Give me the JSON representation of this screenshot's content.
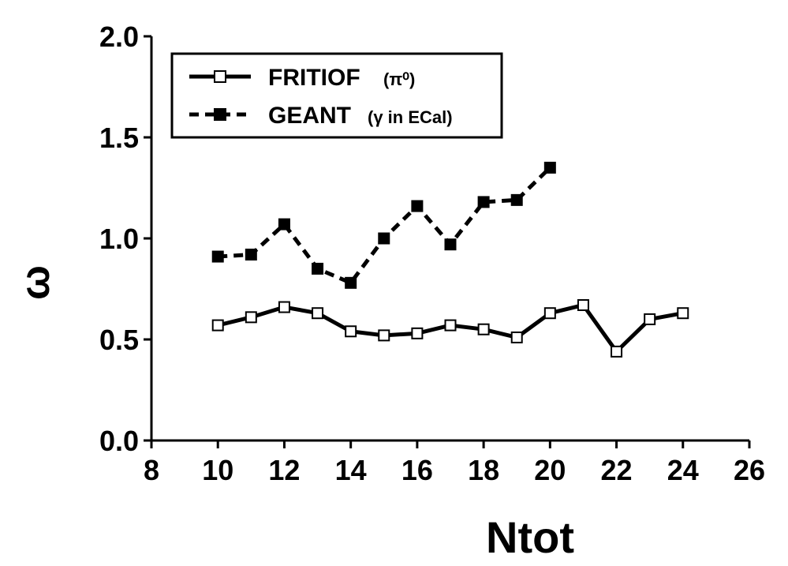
{
  "chart_data": {
    "type": "line",
    "xlabel": "Ntot",
    "ylabel": "ω",
    "xlim": [
      8,
      26
    ],
    "ylim": [
      0.0,
      2.0
    ],
    "x_ticks": [
      "8",
      "10",
      "12",
      "14",
      "16",
      "18",
      "20",
      "22",
      "24",
      "26"
    ],
    "y_ticks": [
      "0.0",
      "0.5",
      "1.0",
      "1.5",
      "2.0"
    ],
    "grid": false,
    "legend_position": "top-left",
    "series": [
      {
        "name": "FRITIOF",
        "name_suffix": "(π⁰)",
        "marker": "open-square",
        "line_style": "solid",
        "x": [
          10,
          11,
          12,
          13,
          14,
          15,
          16,
          17,
          18,
          19,
          20,
          21,
          22,
          23,
          24
        ],
        "y": [
          0.57,
          0.61,
          0.66,
          0.63,
          0.54,
          0.52,
          0.53,
          0.57,
          0.55,
          0.51,
          0.63,
          0.67,
          0.44,
          0.6,
          0.63
        ]
      },
      {
        "name": "GEANT",
        "name_suffix": "(γ in ECal)",
        "marker": "filled-square",
        "line_style": "dashed",
        "x": [
          10,
          11,
          12,
          13,
          14,
          15,
          16,
          17,
          18,
          19,
          20
        ],
        "y": [
          0.91,
          0.92,
          1.07,
          0.85,
          0.78,
          1.0,
          1.16,
          0.97,
          1.18,
          1.19,
          1.35
        ]
      }
    ]
  },
  "colors": {
    "line": "#000000",
    "background": "#ffffff"
  }
}
